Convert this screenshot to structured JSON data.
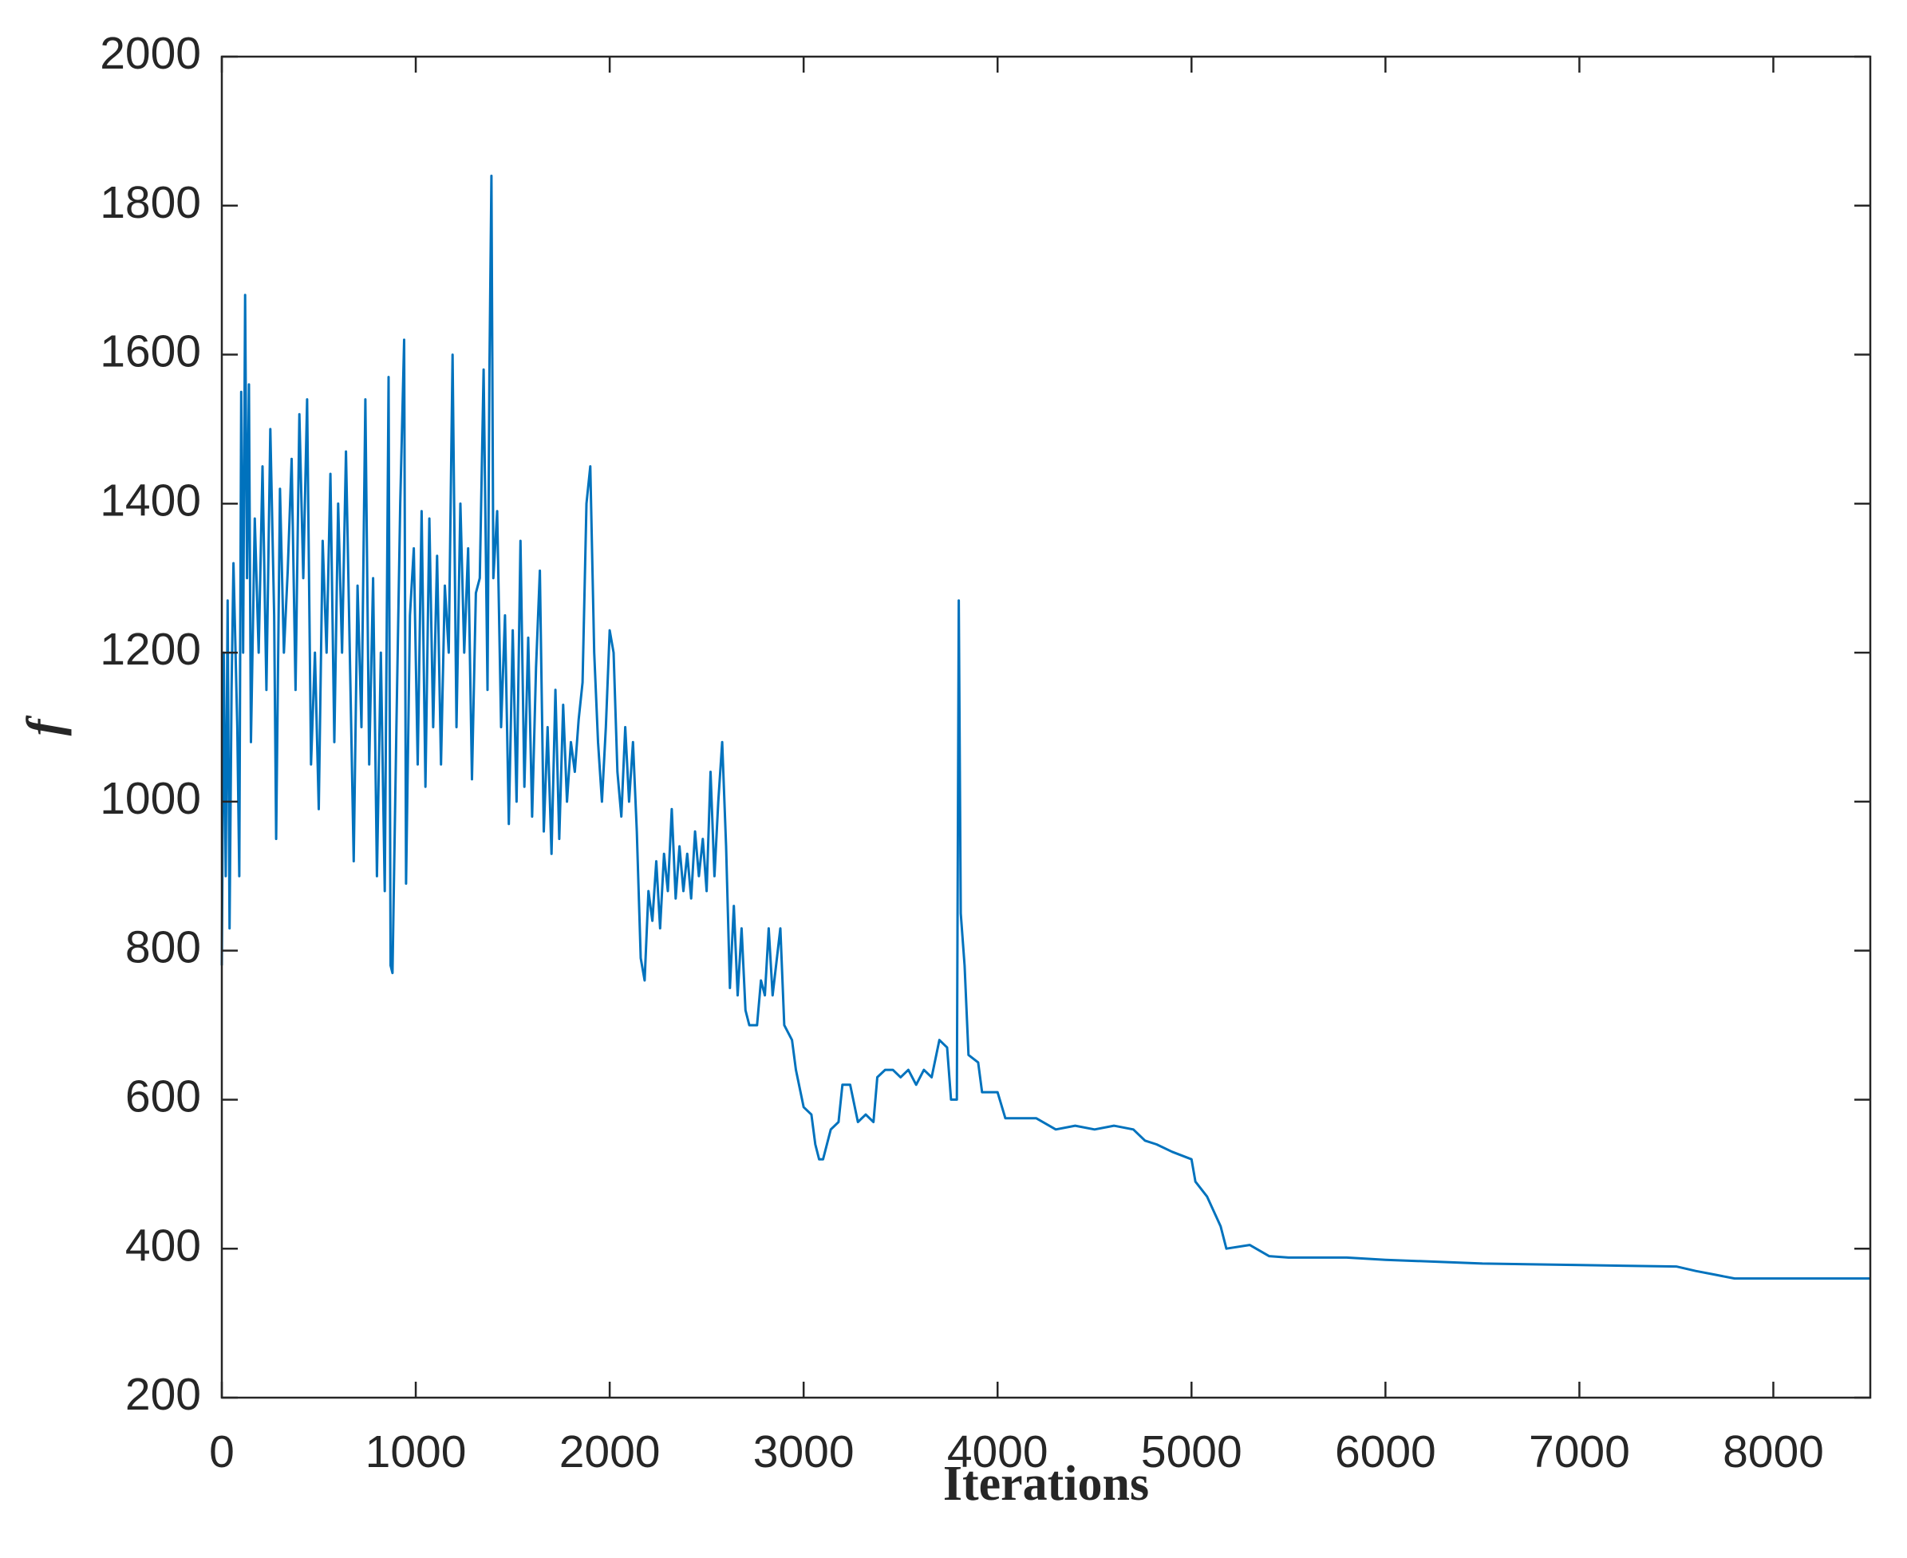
{
  "chart_data": {
    "type": "line",
    "xlabel": "Iterations",
    "ylabel": "f",
    "color": "#0072bd",
    "xlim": [
      0,
      8500
    ],
    "xticks": [
      0,
      1000,
      2000,
      3000,
      4000,
      5000,
      6000,
      7000,
      8000
    ],
    "ylim": [
      200,
      2000
    ],
    "yticks": [
      200,
      400,
      600,
      800,
      1000,
      1200,
      1400,
      1600,
      1800,
      2000
    ],
    "x": [
      0,
      10,
      20,
      30,
      40,
      50,
      60,
      80,
      90,
      100,
      110,
      120,
      130,
      140,
      150,
      170,
      190,
      210,
      230,
      250,
      270,
      280,
      300,
      320,
      340,
      360,
      380,
      400,
      420,
      440,
      460,
      480,
      500,
      520,
      540,
      560,
      580,
      600,
      620,
      640,
      660,
      680,
      700,
      720,
      740,
      760,
      780,
      800,
      820,
      840,
      860,
      870,
      880,
      900,
      920,
      940,
      950,
      970,
      990,
      1010,
      1030,
      1050,
      1070,
      1090,
      1110,
      1130,
      1150,
      1170,
      1190,
      1210,
      1230,
      1250,
      1270,
      1290,
      1310,
      1330,
      1350,
      1370,
      1380,
      1390,
      1400,
      1420,
      1440,
      1460,
      1480,
      1500,
      1520,
      1540,
      1560,
      1580,
      1600,
      1620,
      1640,
      1660,
      1680,
      1700,
      1720,
      1740,
      1760,
      1780,
      1800,
      1820,
      1840,
      1860,
      1880,
      1900,
      1920,
      1940,
      1960,
      1980,
      2000,
      2020,
      2040,
      2060,
      2080,
      2100,
      2120,
      2140,
      2160,
      2180,
      2200,
      2220,
      2240,
      2260,
      2280,
      2300,
      2320,
      2340,
      2360,
      2380,
      2400,
      2420,
      2440,
      2460,
      2480,
      2500,
      2520,
      2540,
      2560,
      2580,
      2600,
      2620,
      2640,
      2660,
      2680,
      2700,
      2720,
      2760,
      2780,
      2800,
      2820,
      2840,
      2880,
      2900,
      2940,
      2960,
      3000,
      3040,
      3060,
      3080,
      3100,
      3140,
      3180,
      3200,
      3240,
      3280,
      3320,
      3360,
      3380,
      3420,
      3460,
      3500,
      3540,
      3580,
      3620,
      3660,
      3700,
      3740,
      3760,
      3790,
      3800,
      3810,
      3830,
      3850,
      3900,
      3920,
      4000,
      4040,
      4100,
      4200,
      4300,
      4400,
      4500,
      4600,
      4700,
      4760,
      4820,
      4900,
      5000,
      5020,
      5080,
      5150,
      5180,
      5300,
      5400,
      5500,
      5800,
      6000,
      6500,
      7000,
      7500,
      7600,
      7700,
      7800,
      8500
    ],
    "values": [
      780,
      1200,
      900,
      1270,
      830,
      1150,
      1320,
      1100,
      900,
      1550,
      1200,
      1680,
      1300,
      1560,
      1080,
      1380,
      1200,
      1450,
      1150,
      1500,
      1250,
      950,
      1420,
      1200,
      1310,
      1460,
      1150,
      1520,
      1300,
      1540,
      1050,
      1200,
      990,
      1350,
      1200,
      1440,
      1080,
      1400,
      1200,
      1470,
      1200,
      920,
      1290,
      1100,
      1540,
      1050,
      1300,
      900,
      1200,
      880,
      1570,
      780,
      770,
      1100,
      1400,
      1620,
      890,
      1250,
      1340,
      1050,
      1390,
      1020,
      1380,
      1100,
      1330,
      1050,
      1290,
      1200,
      1600,
      1100,
      1400,
      1200,
      1340,
      1030,
      1280,
      1300,
      1580,
      1150,
      1580,
      1840,
      1300,
      1390,
      1100,
      1250,
      970,
      1230,
      1000,
      1350,
      1020,
      1220,
      980,
      1180,
      1310,
      960,
      1100,
      930,
      1150,
      950,
      1130,
      1000,
      1080,
      1040,
      1110,
      1160,
      1400,
      1450,
      1200,
      1080,
      1000,
      1100,
      1230,
      1200,
      1040,
      980,
      1100,
      1000,
      1080,
      960,
      790,
      760,
      880,
      840,
      920,
      830,
      930,
      880,
      990,
      870,
      940,
      880,
      930,
      870,
      960,
      900,
      950,
      880,
      1040,
      900,
      1000,
      1080,
      940,
      750,
      860,
      740,
      830,
      720,
      700,
      700,
      760,
      740,
      830,
      740,
      830,
      700,
      680,
      640,
      590,
      580,
      540,
      520,
      520,
      560,
      570,
      620,
      620,
      570,
      580,
      570,
      630,
      640,
      640,
      630,
      640,
      620,
      640,
      630,
      680,
      670,
      600,
      600,
      1270,
      850,
      780,
      660,
      650,
      610,
      610,
      575,
      575,
      575,
      560,
      565,
      560,
      565,
      560,
      545,
      540,
      530,
      520,
      490,
      470,
      430,
      400,
      405,
      390,
      388,
      388,
      385,
      380,
      378,
      376,
      370,
      365,
      360,
      360
    ]
  }
}
